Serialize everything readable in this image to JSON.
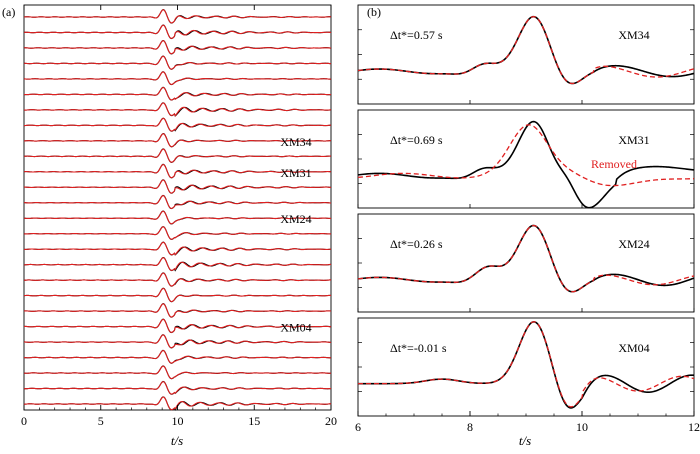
{
  "colors": {
    "observed": "#000000",
    "synthetic": "#e02020",
    "removed_text": "#e02020"
  },
  "chart_data": [
    {
      "type": "line",
      "panel_label": "(a)",
      "xlabel": "t/s",
      "xlim": [
        0,
        20
      ],
      "xticks": [
        "0",
        "5",
        "10",
        "15",
        "20"
      ],
      "trace_count": 26,
      "p_arrival_s": 9.1,
      "series": [
        {
          "name": "",
          "color": "#000000"
        },
        {
          "name": "",
          "color": "#e02020"
        }
      ],
      "station_labels": [
        {
          "text": "XM34",
          "trace_index": 8
        },
        {
          "text": "XM31",
          "trace_index": 10
        },
        {
          "text": "XM24",
          "trace_index": 13
        },
        {
          "text": "XM04",
          "trace_index": 20
        }
      ]
    },
    {
      "type": "line",
      "panel_label": "(b)",
      "xlabel": "t/s",
      "xlim": [
        6,
        12
      ],
      "xticks": [
        "6",
        "8",
        "10",
        "12"
      ],
      "subplots": [
        {
          "station": "XM34",
          "dt_label": "Δt*=0.57 s",
          "dt": 0.57,
          "annotation": ""
        },
        {
          "station": "XM31",
          "dt_label": "Δt*=0.69 s",
          "dt": 0.69,
          "annotation": "Removed"
        },
        {
          "station": "XM24",
          "dt_label": "Δt*=0.26 s",
          "dt": 0.26,
          "annotation": ""
        },
        {
          "station": "XM04",
          "dt_label": "Δt*=-0.01 s",
          "dt": -0.01,
          "annotation": ""
        }
      ]
    }
  ]
}
